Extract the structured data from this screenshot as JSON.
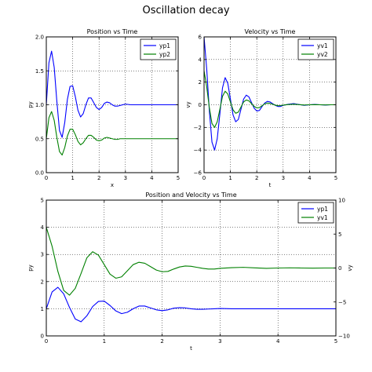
{
  "figure": {
    "title": "Oscillation decay"
  },
  "chart_data": [
    {
      "type": "line",
      "title": "Position vs Time",
      "xlabel": "x",
      "ylabel": "py",
      "xlim": [
        0,
        5
      ],
      "ylim": [
        0.0,
        2.0
      ],
      "xticks": [
        "0",
        "1",
        "2",
        "3",
        "4",
        "5"
      ],
      "yticks": [
        "0.0",
        "0.5",
        "1.0",
        "1.5",
        "2.0"
      ],
      "grid": true,
      "legend": "top-right",
      "series": [
        {
          "name": "yp1",
          "color": "#0000ff",
          "x": [
            0,
            0.1,
            0.2,
            0.3,
            0.4,
            0.5,
            0.6,
            0.7,
            0.8,
            0.9,
            1.0,
            1.1,
            1.2,
            1.3,
            1.4,
            1.5,
            1.6,
            1.7,
            1.8,
            1.9,
            2.0,
            2.1,
            2.2,
            2.3,
            2.4,
            2.5,
            2.6,
            2.7,
            2.8,
            2.9,
            3.0,
            3.2,
            3.4,
            3.6,
            3.8,
            4.0,
            4.2,
            4.4,
            4.6,
            4.8,
            5.0
          ],
          "values": [
            1.0,
            1.62,
            1.79,
            1.55,
            1.05,
            0.62,
            0.52,
            0.74,
            1.08,
            1.27,
            1.28,
            1.12,
            0.92,
            0.82,
            0.87,
            1.0,
            1.1,
            1.1,
            1.03,
            0.96,
            0.93,
            0.96,
            1.02,
            1.04,
            1.03,
            1.0,
            0.98,
            0.98,
            0.99,
            1.0,
            1.01,
            1.0,
            1.0,
            1.0,
            1.0,
            1.0,
            1.0,
            1.0,
            1.0,
            1.0,
            1.0
          ]
        },
        {
          "name": "yp2",
          "color": "#008000",
          "x": [
            0,
            0.1,
            0.2,
            0.3,
            0.4,
            0.5,
            0.6,
            0.7,
            0.8,
            0.9,
            1.0,
            1.1,
            1.2,
            1.3,
            1.4,
            1.5,
            1.6,
            1.7,
            1.8,
            1.9,
            2.0,
            2.1,
            2.2,
            2.3,
            2.4,
            2.5,
            2.6,
            2.7,
            2.8,
            2.9,
            3.0,
            3.2,
            3.4,
            3.6,
            3.8,
            4.0,
            4.2,
            4.4,
            4.6,
            4.8,
            5.0
          ],
          "values": [
            0.5,
            0.81,
            0.9,
            0.77,
            0.52,
            0.31,
            0.26,
            0.37,
            0.54,
            0.64,
            0.64,
            0.56,
            0.46,
            0.41,
            0.44,
            0.5,
            0.55,
            0.55,
            0.52,
            0.48,
            0.47,
            0.48,
            0.51,
            0.52,
            0.51,
            0.5,
            0.49,
            0.49,
            0.5,
            0.5,
            0.5,
            0.5,
            0.5,
            0.5,
            0.5,
            0.5,
            0.5,
            0.5,
            0.5,
            0.5,
            0.5
          ]
        }
      ]
    },
    {
      "type": "line",
      "title": "Velocity vs Time",
      "xlabel": "t",
      "ylabel": "vy",
      "xlim": [
        0,
        5
      ],
      "ylim": [
        -6,
        6
      ],
      "xticks": [
        "0",
        "1",
        "2",
        "3",
        "4",
        "5"
      ],
      "yticks": [
        "−6",
        "−4",
        "−2",
        "0",
        "2",
        "4",
        "6"
      ],
      "grid": true,
      "legend": "top-right",
      "series": [
        {
          "name": "yv1",
          "color": "#0000ff",
          "x": [
            0,
            0.1,
            0.2,
            0.3,
            0.4,
            0.5,
            0.6,
            0.7,
            0.8,
            0.9,
            1.0,
            1.1,
            1.2,
            1.3,
            1.4,
            1.5,
            1.6,
            1.7,
            1.8,
            1.9,
            2.0,
            2.1,
            2.2,
            2.3,
            2.4,
            2.5,
            2.6,
            2.7,
            2.8,
            2.9,
            3.0,
            3.2,
            3.4,
            3.6,
            3.8,
            4.0,
            4.2,
            4.4,
            4.6,
            4.8,
            5.0
          ],
          "values": [
            6.0,
            3.2,
            -0.5,
            -3.3,
            -4.0,
            -3.0,
            -0.8,
            1.5,
            2.4,
            1.9,
            0.5,
            -0.9,
            -1.5,
            -1.3,
            -0.4,
            0.5,
            0.85,
            0.7,
            0.2,
            -0.3,
            -0.55,
            -0.5,
            -0.15,
            0.15,
            0.3,
            0.25,
            0.1,
            -0.05,
            -0.15,
            -0.15,
            -0.05,
            0.05,
            0.1,
            0.02,
            -0.05,
            0.0,
            0.03,
            0.0,
            -0.02,
            0.0,
            0.0
          ]
        },
        {
          "name": "yv2",
          "color": "#008000",
          "x": [
            0,
            0.1,
            0.2,
            0.3,
            0.4,
            0.5,
            0.6,
            0.7,
            0.8,
            0.9,
            1.0,
            1.1,
            1.2,
            1.3,
            1.4,
            1.5,
            1.6,
            1.7,
            1.8,
            1.9,
            2.0,
            2.1,
            2.2,
            2.3,
            2.4,
            2.5,
            2.6,
            2.7,
            2.8,
            2.9,
            3.0,
            3.2,
            3.4,
            3.6,
            3.8,
            4.0,
            4.2,
            4.4,
            4.6,
            4.8,
            5.0
          ],
          "values": [
            3.0,
            1.6,
            -0.25,
            -1.65,
            -2.0,
            -1.5,
            -0.4,
            0.75,
            1.2,
            0.95,
            0.25,
            -0.45,
            -0.75,
            -0.65,
            -0.2,
            0.25,
            0.42,
            0.35,
            0.1,
            -0.15,
            -0.27,
            -0.25,
            -0.08,
            0.08,
            0.15,
            0.12,
            0.05,
            -0.03,
            -0.08,
            -0.07,
            -0.03,
            0.02,
            0.05,
            0.01,
            -0.02,
            0.0,
            0.01,
            0.0,
            -0.01,
            0.0,
            0.0
          ]
        }
      ]
    },
    {
      "type": "line",
      "title": "Position and Velocity vs Time",
      "xlabel": "t",
      "ylabel": "py",
      "ylabel_right": "vy",
      "xlim": [
        0,
        5
      ],
      "ylim": [
        0,
        5
      ],
      "ylim_right": [
        -10,
        10
      ],
      "xticks": [
        "0",
        "1",
        "2",
        "3",
        "4",
        "5"
      ],
      "yticks": [
        "0",
        "1",
        "2",
        "3",
        "4",
        "5"
      ],
      "yticks_right": [
        "−10",
        "−5",
        "0",
        "5",
        "10"
      ],
      "grid": true,
      "legend": "top-right",
      "series": [
        {
          "name": "yp1",
          "color": "#0000ff",
          "axis": "left",
          "x": [
            0,
            0.1,
            0.2,
            0.3,
            0.4,
            0.5,
            0.6,
            0.7,
            0.8,
            0.9,
            1.0,
            1.1,
            1.2,
            1.3,
            1.4,
            1.5,
            1.6,
            1.7,
            1.8,
            1.9,
            2.0,
            2.1,
            2.2,
            2.3,
            2.4,
            2.5,
            2.6,
            2.7,
            2.8,
            2.9,
            3.0,
            3.2,
            3.4,
            3.6,
            3.8,
            4.0,
            4.2,
            4.4,
            4.6,
            4.8,
            5.0
          ],
          "values": [
            1.0,
            1.62,
            1.79,
            1.55,
            1.05,
            0.62,
            0.52,
            0.74,
            1.08,
            1.27,
            1.28,
            1.12,
            0.92,
            0.82,
            0.87,
            1.0,
            1.1,
            1.1,
            1.03,
            0.96,
            0.93,
            0.96,
            1.02,
            1.04,
            1.03,
            1.0,
            0.98,
            0.98,
            0.99,
            1.0,
            1.01,
            1.0,
            1.0,
            1.0,
            1.0,
            1.0,
            1.0,
            1.0,
            1.0,
            1.0,
            1.0
          ]
        },
        {
          "name": "yv1",
          "color": "#008000",
          "axis": "right",
          "x": [
            0,
            0.1,
            0.2,
            0.3,
            0.4,
            0.5,
            0.6,
            0.7,
            0.8,
            0.9,
            1.0,
            1.1,
            1.2,
            1.3,
            1.4,
            1.5,
            1.6,
            1.7,
            1.8,
            1.9,
            2.0,
            2.1,
            2.2,
            2.3,
            2.4,
            2.5,
            2.6,
            2.7,
            2.8,
            2.9,
            3.0,
            3.2,
            3.4,
            3.6,
            3.8,
            4.0,
            4.2,
            4.4,
            4.6,
            4.8,
            5.0
          ],
          "values": [
            6.0,
            3.2,
            -0.5,
            -3.3,
            -4.0,
            -3.0,
            -0.8,
            1.5,
            2.4,
            1.9,
            0.5,
            -0.9,
            -1.5,
            -1.3,
            -0.4,
            0.5,
            0.85,
            0.7,
            0.2,
            -0.3,
            -0.55,
            -0.5,
            -0.15,
            0.15,
            0.3,
            0.25,
            0.1,
            -0.05,
            -0.15,
            -0.15,
            -0.05,
            0.05,
            0.1,
            0.02,
            -0.05,
            0.0,
            0.03,
            0.0,
            -0.02,
            0.0,
            0.0
          ]
        }
      ]
    }
  ]
}
